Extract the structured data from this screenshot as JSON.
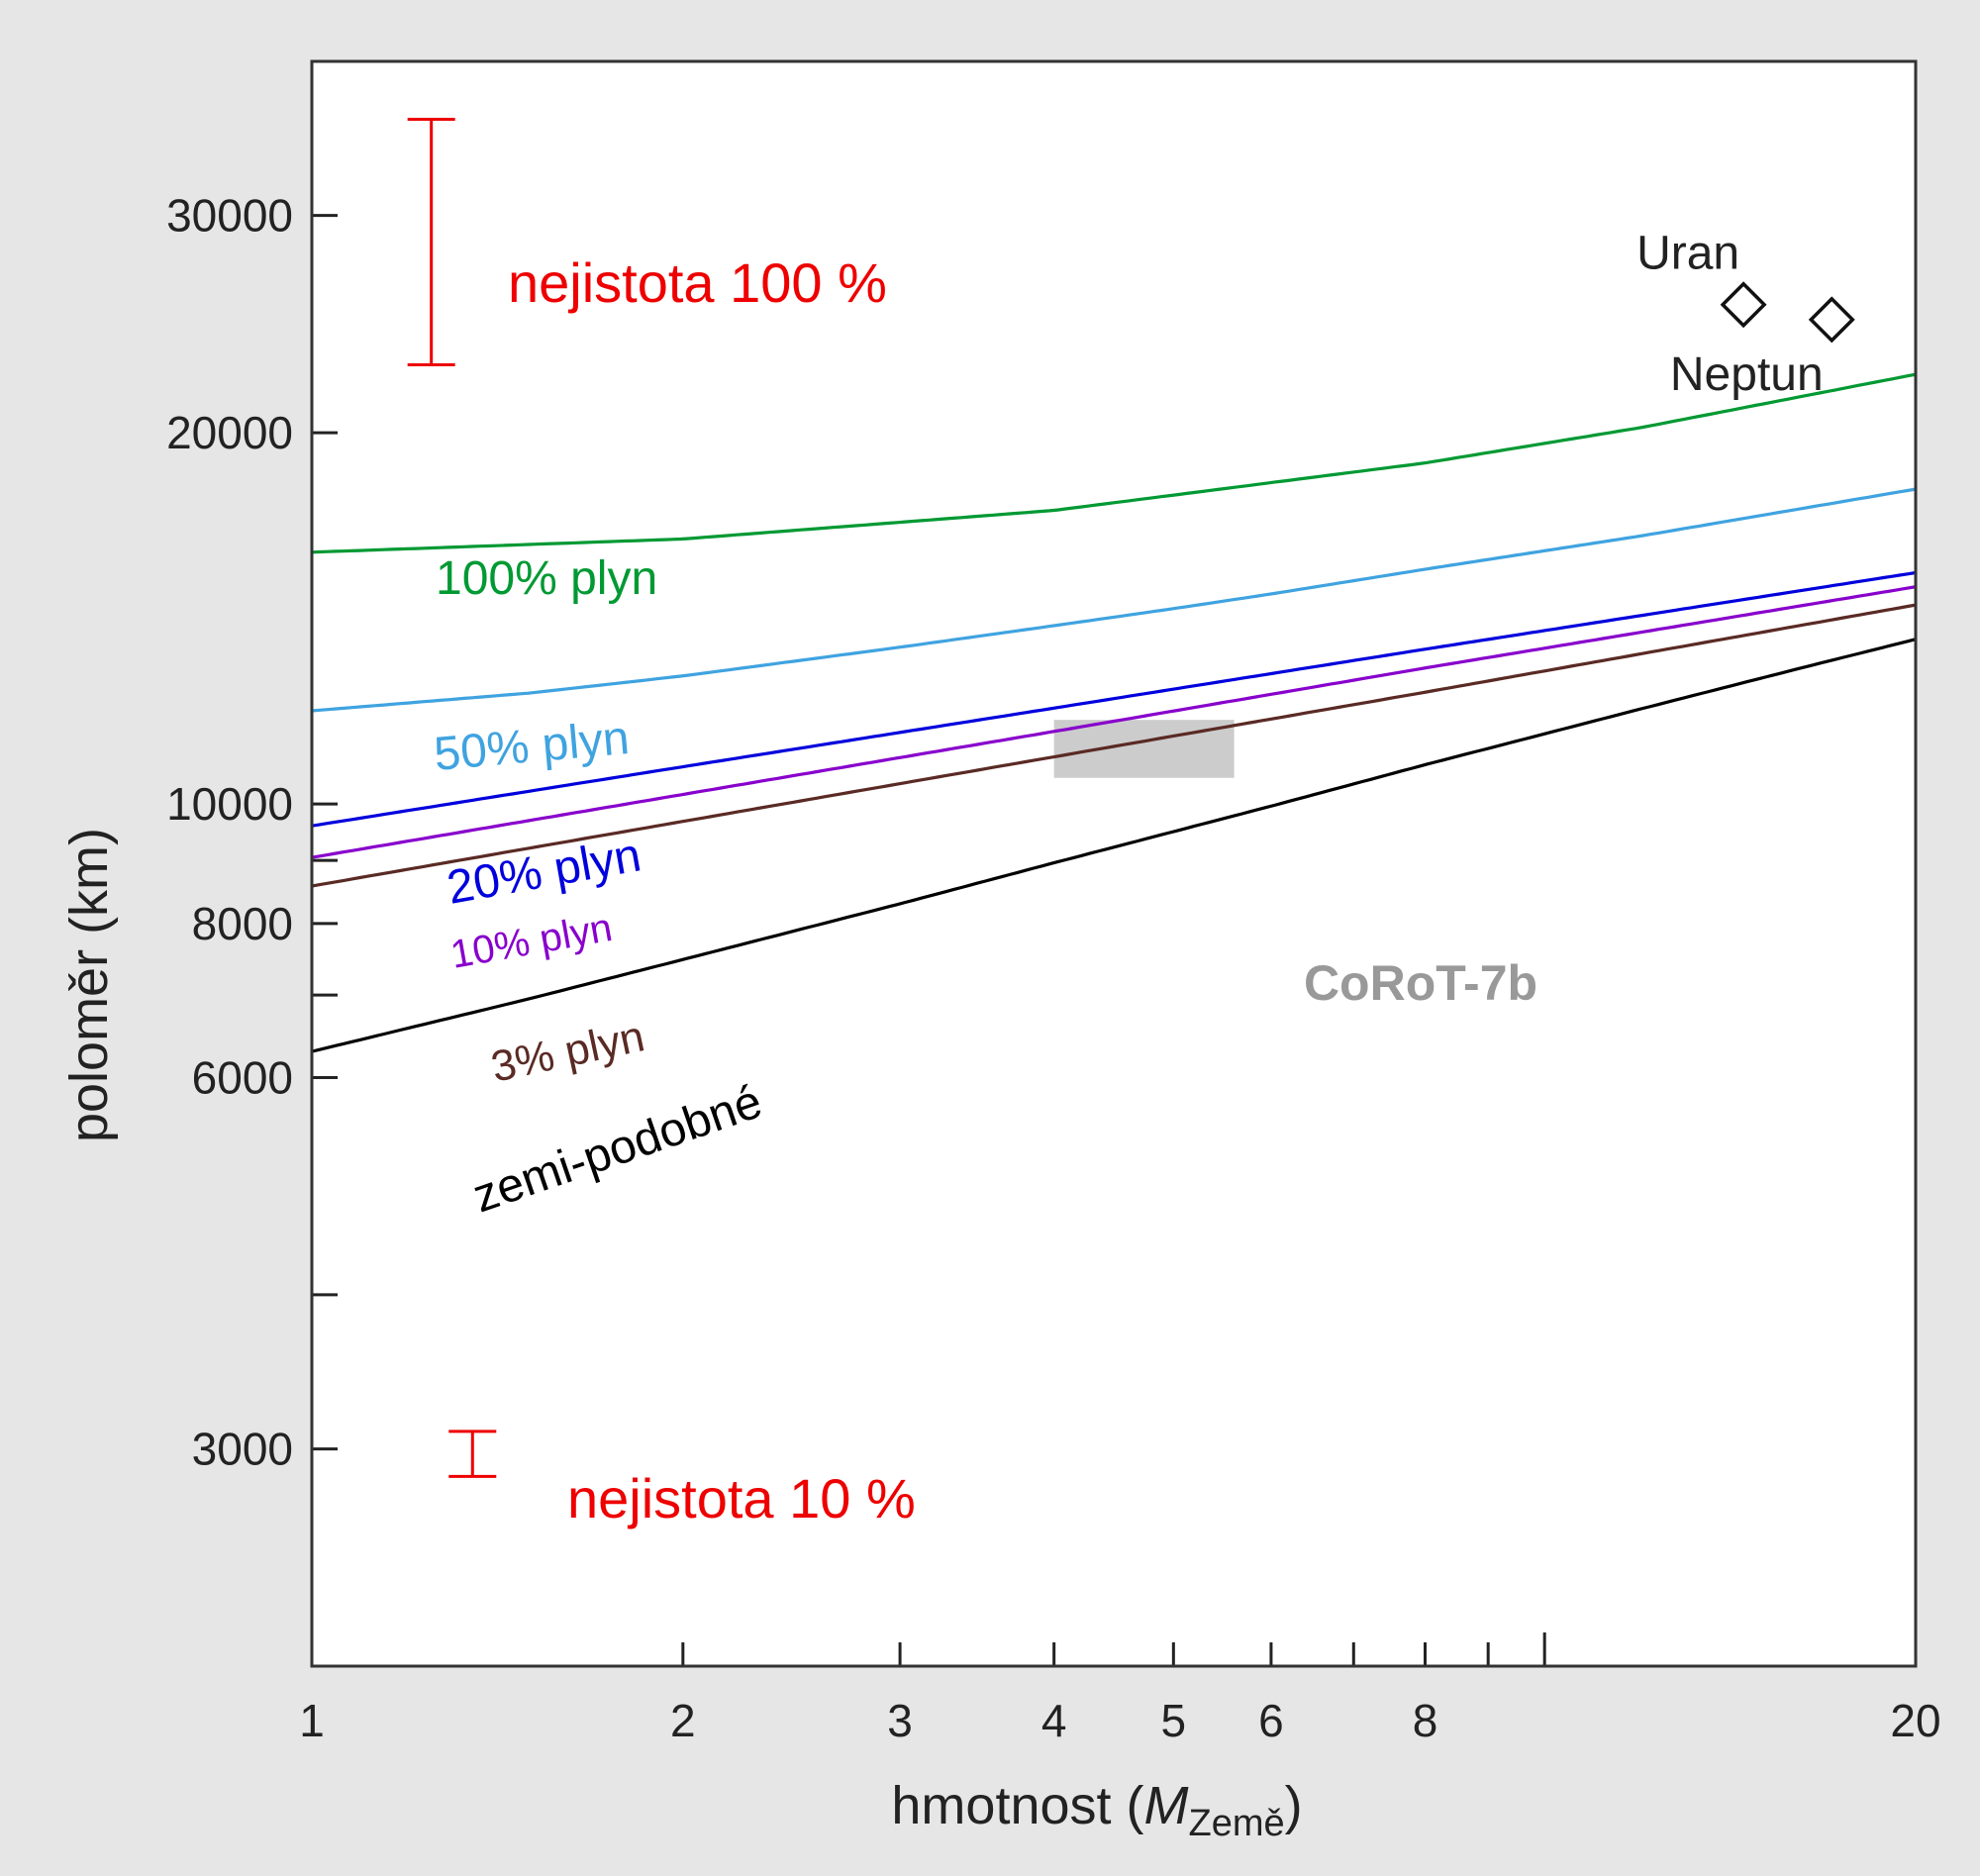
{
  "chart_data": {
    "type": "line",
    "x_scale": "log",
    "y_scale": "log",
    "xlim": [
      1,
      20
    ],
    "ylim": [
      2000,
      40000
    ],
    "xlabel": {
      "main": "hmotnost (",
      "italic": "M",
      "subscript": "Země",
      "end": ")"
    },
    "ylabel": "poloměr (km)",
    "x_ticks": [
      {
        "value": 1,
        "label": "1"
      },
      {
        "value": 2,
        "label": "2"
      },
      {
        "value": 3,
        "label": "3"
      },
      {
        "value": 4,
        "label": "4"
      },
      {
        "value": 5,
        "label": "5"
      },
      {
        "value": 6,
        "label": "6"
      },
      {
        "value": 7,
        "label": ""
      },
      {
        "value": 8,
        "label": "8"
      },
      {
        "value": 9,
        "label": ""
      },
      {
        "value": 10,
        "label": ""
      },
      {
        "value": 20,
        "label": "20"
      }
    ],
    "y_ticks": [
      {
        "value": 3000,
        "label": "3000"
      },
      {
        "value": 4000,
        "label": ""
      },
      {
        "value": 6000,
        "label": "6000"
      },
      {
        "value": 7000,
        "label": ""
      },
      {
        "value": 8000,
        "label": "8000"
      },
      {
        "value": 9000,
        "label": ""
      },
      {
        "value": 10000,
        "label": "10000"
      },
      {
        "value": 20000,
        "label": "20000"
      },
      {
        "value": 30000,
        "label": "30000"
      }
    ],
    "series": [
      {
        "name": "100% plyn",
        "color": "#009933",
        "label_rotation": 0,
        "x": [
          1,
          2,
          4,
          8,
          12,
          20
        ],
        "y": [
          16000,
          16400,
          17300,
          18900,
          20200,
          22300
        ]
      },
      {
        "name": "50% plyn",
        "color": "#3fa3e0",
        "label_rotation": -5,
        "x": [
          1,
          1.5,
          2,
          3,
          4,
          5,
          6,
          8,
          12,
          20
        ],
        "y": [
          11900,
          12300,
          12700,
          13400,
          13950,
          14400,
          14800,
          15500,
          16500,
          18000
        ]
      },
      {
        "name": "20% plyn",
        "color": "#0000dd",
        "label_rotation": -10,
        "x": [
          1,
          2,
          4,
          8,
          20
        ],
        "y": [
          9600,
          10720,
          11960,
          13350,
          15400
        ]
      },
      {
        "name": "10% plyn",
        "color": "#8800cc",
        "label_rotation": -10,
        "x": [
          1,
          2,
          4,
          8,
          20
        ],
        "y": [
          9050,
          10180,
          11450,
          12890,
          15000
        ]
      },
      {
        "name": "3% plyn",
        "color": "#5a2a24",
        "label_rotation": -12,
        "x": [
          1,
          2,
          4,
          8,
          20
        ],
        "y": [
          8580,
          9680,
          10920,
          12320,
          14500
        ]
      },
      {
        "name": "zemi-podobné",
        "color": "#000000",
        "label_rotation": -19,
        "x": [
          1,
          1.5,
          2,
          3,
          4,
          6,
          8,
          12,
          16,
          20
        ],
        "y": [
          6300,
          6950,
          7480,
          8300,
          8960,
          9960,
          10760,
          11950,
          12860,
          13600
        ]
      }
    ],
    "points": [
      {
        "name": "Uran",
        "x": 14.5,
        "y": 25400
      },
      {
        "name": "Neptun",
        "x": 17.1,
        "y": 24700
      }
    ],
    "region": {
      "label": "CoRoT-7b",
      "x": [
        4.0,
        5.6
      ],
      "y": [
        10500,
        11700
      ]
    },
    "error_bars": [
      {
        "label": "nejistota 100 %",
        "x": 1.25,
        "center": 28300,
        "y": [
          22700,
          35900
        ]
      },
      {
        "label": "nejistota 10 %",
        "x": 1.35,
        "center": 2950,
        "y": [
          2850,
          3100
        ]
      }
    ]
  }
}
